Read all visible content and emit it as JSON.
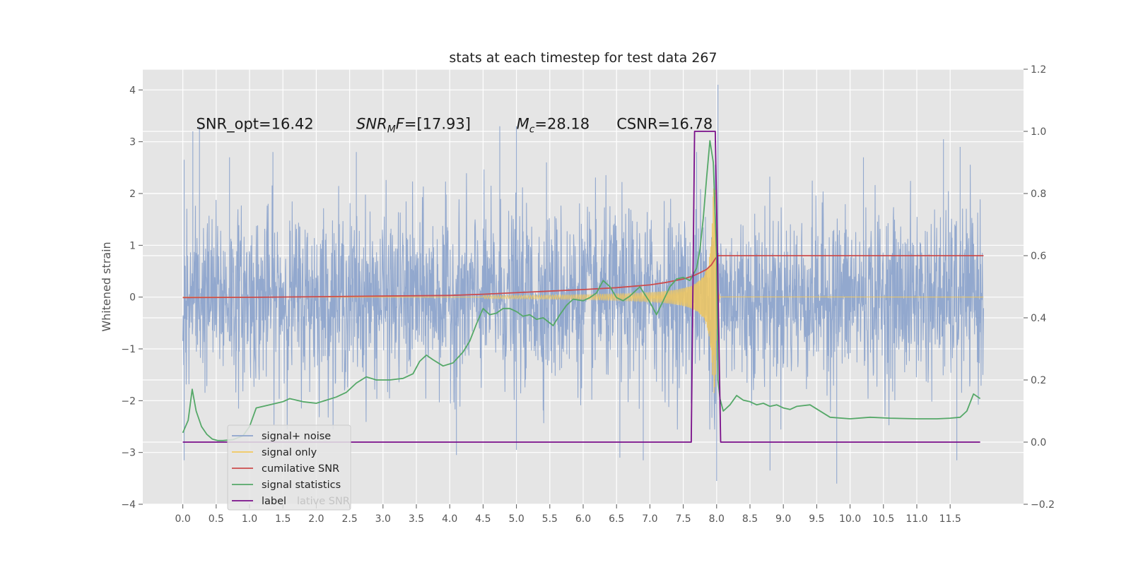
{
  "chart_data": {
    "type": "line",
    "title": "stats at each timestep for test data 267",
    "ylabel": "Whitened strain",
    "xlim": [
      -0.6,
      12.6
    ],
    "ylim": [
      -4.0,
      4.4
    ],
    "y2lim": [
      -0.2,
      1.2
    ],
    "x_ticks": [
      0.0,
      0.5,
      1.0,
      1.5,
      2.0,
      2.5,
      3.0,
      3.5,
      4.0,
      4.5,
      5.0,
      5.5,
      6.0,
      6.5,
      7.0,
      7.5,
      8.0,
      8.5,
      9.0,
      9.5,
      10.0,
      10.5,
      11.0,
      11.5
    ],
    "x_tick_labels": [
      "0.0",
      "0.5",
      "1.0",
      "1.5",
      "2.0",
      "2.5",
      "3.0",
      "3.5",
      "4.0",
      "4.5",
      "5.0",
      "5.5",
      "6.0",
      "6.5",
      "7.0",
      "7.5",
      "8.0",
      "8.5",
      "9.0",
      "9.5",
      "10.0",
      "10.5",
      "11.0",
      "11.5"
    ],
    "y_ticks": [
      -4,
      -3,
      -2,
      -1,
      0,
      1,
      2,
      3,
      4
    ],
    "y_tick_labels": [
      "−4",
      "−3",
      "−2",
      "−1",
      "0",
      "1",
      "2",
      "3",
      "4"
    ],
    "y2_ticks": [
      -0.2,
      0.0,
      0.2,
      0.4,
      0.6,
      0.8,
      1.0,
      1.2
    ],
    "y2_tick_labels": [
      "−0.2",
      "0.0",
      "0.2",
      "0.4",
      "0.6",
      "0.8",
      "1.0",
      "1.2"
    ],
    "annotations": [
      {
        "x": 0.2,
        "y": 3.25,
        "segments": [
          {
            "t": "SNR_opt=16.42",
            "italic": false
          }
        ]
      },
      {
        "x": 2.6,
        "y": 3.25,
        "segments": [
          {
            "t": "SNR",
            "italic": true
          },
          {
            "t": "M",
            "italic": true,
            "sub": true
          },
          {
            "t": "F",
            "italic": true
          },
          {
            "t": "=[17.93]",
            "italic": false
          }
        ]
      },
      {
        "x": 5.0,
        "y": 3.25,
        "segments": [
          {
            "t": "M",
            "italic": true
          },
          {
            "t": "c",
            "italic": true,
            "sub": true
          },
          {
            "t": "=28.18",
            "italic": false
          }
        ]
      },
      {
        "x": 6.5,
        "y": 3.25,
        "segments": [
          {
            "t": "CSNR=16.78",
            "italic": false
          }
        ]
      }
    ],
    "legend": {
      "position": "lower-left",
      "entries": [
        {
          "label": "signal+ noise",
          "color": "#8da4cc"
        },
        {
          "label": "signal only",
          "color": "#f0c75e"
        },
        {
          "label": "cumilative SNR",
          "color": "#cc4c4c"
        },
        {
          "label": "signal statistics",
          "color": "#55a868"
        },
        {
          "label": "label",
          "color": "#7a0f8a"
        }
      ],
      "ghost_text": "lative SNR"
    },
    "series": [
      {
        "name": "signal+ noise",
        "axis": "left",
        "color": "#8da4cc",
        "kind": "noise",
        "x_range": [
          0.0,
          12.0
        ],
        "peaks": [
          {
            "x": 0.02,
            "y": 2.65
          },
          {
            "x": 0.02,
            "y": -3.15
          },
          {
            "x": 0.15,
            "y": 3.2
          },
          {
            "x": 0.25,
            "y": 3.3
          },
          {
            "x": 0.7,
            "y": 2.7
          },
          {
            "x": 1.35,
            "y": 2.8
          },
          {
            "x": 2.6,
            "y": 2.8
          },
          {
            "x": 4.1,
            "y": -3.05
          },
          {
            "x": 4.75,
            "y": 3.3
          },
          {
            "x": 5.0,
            "y": 3.3
          },
          {
            "x": 5.0,
            "y": -2.95
          },
          {
            "x": 5.45,
            "y": 2.6
          },
          {
            "x": 6.0,
            "y": -1.1
          },
          {
            "x": 6.55,
            "y": -3.1
          },
          {
            "x": 6.9,
            "y": -3.15
          },
          {
            "x": 7.7,
            "y": 2.8
          },
          {
            "x": 8.02,
            "y": 4.1
          },
          {
            "x": 8.0,
            "y": -3.55
          },
          {
            "x": 8.8,
            "y": -3.35
          },
          {
            "x": 9.8,
            "y": -3.6
          },
          {
            "x": 10.2,
            "y": 2.7
          },
          {
            "x": 11.4,
            "y": 3.05
          },
          {
            "x": 11.6,
            "y": -3.15
          },
          {
            "x": 11.65,
            "y": 2.9
          }
        ]
      },
      {
        "name": "signal only",
        "axis": "left",
        "color": "#f0c75e",
        "kind": "chirp",
        "x_range": [
          4.5,
          8.05
        ],
        "merger_x": 7.98,
        "peak_amplitude": 2.1
      },
      {
        "name": "cumilative SNR",
        "axis": "right",
        "color": "#cc4c4c",
        "x": [
          0.0,
          1.0,
          2.0,
          3.0,
          4.0,
          4.5,
          5.0,
          5.5,
          6.0,
          6.5,
          7.0,
          7.25,
          7.5,
          7.65,
          7.75,
          7.85,
          7.92,
          7.98,
          8.02,
          8.5,
          9.0,
          10.0,
          11.0,
          12.0
        ],
        "values": [
          0.465,
          0.466,
          0.468,
          0.47,
          0.472,
          0.476,
          0.481,
          0.486,
          0.491,
          0.497,
          0.506,
          0.514,
          0.525,
          0.535,
          0.545,
          0.556,
          0.57,
          0.59,
          0.6,
          0.6,
          0.6,
          0.6,
          0.6,
          0.6
        ]
      },
      {
        "name": "signal statistics",
        "axis": "right",
        "color": "#55a868",
        "x": [
          0.0,
          0.08,
          0.14,
          0.2,
          0.28,
          0.36,
          0.44,
          0.52,
          0.6,
          0.75,
          0.9,
          1.0,
          1.1,
          1.3,
          1.5,
          1.6,
          1.8,
          2.0,
          2.15,
          2.3,
          2.45,
          2.6,
          2.75,
          2.9,
          3.1,
          3.3,
          3.45,
          3.55,
          3.65,
          3.75,
          3.9,
          4.05,
          4.2,
          4.3,
          4.4,
          4.5,
          4.6,
          4.7,
          4.8,
          4.9,
          5.0,
          5.1,
          5.2,
          5.3,
          5.4,
          5.55,
          5.65,
          5.75,
          5.85,
          6.0,
          6.1,
          6.2,
          6.3,
          6.4,
          6.5,
          6.6,
          6.7,
          6.85,
          7.0,
          7.1,
          7.2,
          7.3,
          7.4,
          7.5,
          7.6,
          7.7,
          7.75,
          7.8,
          7.85,
          7.9,
          7.95,
          8.0,
          8.02,
          8.05,
          8.1,
          8.2,
          8.3,
          8.4,
          8.5,
          8.6,
          8.7,
          8.8,
          8.9,
          9.0,
          9.1,
          9.2,
          9.4,
          9.7,
          10.0,
          10.3,
          10.6,
          11.0,
          11.3,
          11.5,
          11.65,
          11.75,
          11.85,
          11.95
        ],
        "values": [
          0.03,
          0.07,
          0.17,
          0.1,
          0.05,
          0.025,
          0.01,
          0.005,
          0.005,
          0.008,
          0.02,
          0.05,
          0.11,
          0.12,
          0.13,
          0.14,
          0.13,
          0.125,
          0.135,
          0.145,
          0.16,
          0.19,
          0.21,
          0.2,
          0.2,
          0.205,
          0.22,
          0.26,
          0.28,
          0.265,
          0.245,
          0.255,
          0.29,
          0.325,
          0.38,
          0.43,
          0.41,
          0.415,
          0.43,
          0.43,
          0.42,
          0.405,
          0.41,
          0.395,
          0.4,
          0.375,
          0.41,
          0.44,
          0.46,
          0.455,
          0.465,
          0.48,
          0.52,
          0.5,
          0.465,
          0.455,
          0.47,
          0.5,
          0.45,
          0.41,
          0.455,
          0.5,
          0.525,
          0.53,
          0.52,
          0.56,
          0.62,
          0.72,
          0.85,
          0.97,
          0.9,
          0.6,
          0.2,
          0.14,
          0.1,
          0.12,
          0.15,
          0.135,
          0.13,
          0.12,
          0.125,
          0.115,
          0.12,
          0.11,
          0.105,
          0.115,
          0.12,
          0.08,
          0.075,
          0.08,
          0.077,
          0.075,
          0.075,
          0.077,
          0.08,
          0.1,
          0.155,
          0.14
        ]
      },
      {
        "name": "label",
        "axis": "right",
        "color": "#7a0f8a",
        "x": [
          0.0,
          7.62,
          7.67,
          7.98,
          8.06,
          11.95
        ],
        "values": [
          0.0,
          0.0,
          1.0,
          1.0,
          0.0,
          0.0
        ]
      }
    ]
  }
}
